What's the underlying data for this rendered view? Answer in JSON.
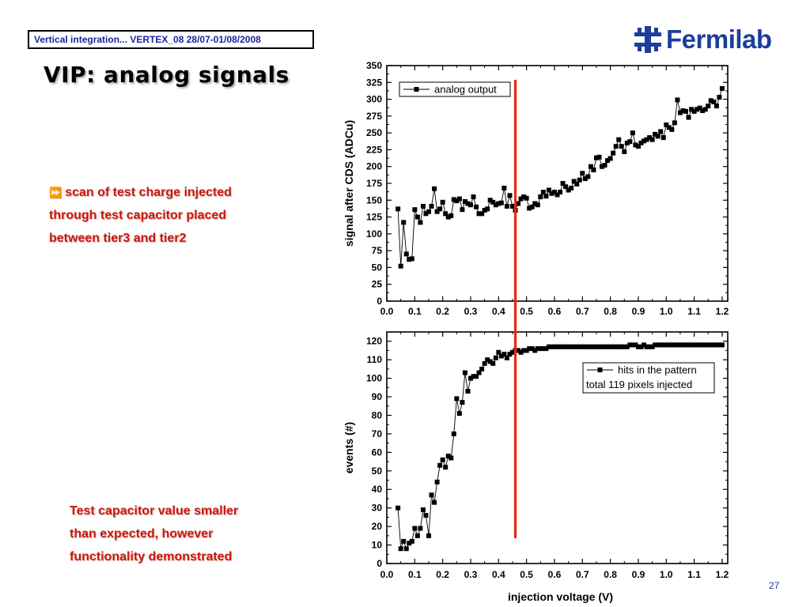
{
  "header": {
    "conference": "Vertical integration... VERTEX_08 28/07-01/08/2008",
    "logo_text": "Fermilab",
    "logo_icon": "fermilab-logo-icon"
  },
  "title": "VIP: analog signals",
  "bullet": {
    "icon": "double-arrow-icon",
    "lines": [
      "scan of test charge injected",
      "through test capacitor placed",
      "between tier3 and tier2"
    ]
  },
  "note": {
    "lines": [
      "Test capacitor value smaller",
      "than expected, however",
      "functionality demonstrated"
    ]
  },
  "page_number": "27",
  "colors": {
    "text_red": "#c8190e",
    "marker_line": "#e8291b",
    "logo_blue": "#1b3f9a",
    "header_text": "#1a1f9e"
  },
  "marker_line": {
    "x": 0.46
  },
  "chart_data": [
    {
      "type": "line",
      "xlabel": "",
      "ylabel": "signal after CDS (ADCu)",
      "xlim": [
        0.0,
        1.22
      ],
      "ylim": [
        0,
        350
      ],
      "xticks": [
        "0.0",
        "0.1",
        "0.2",
        "0.3",
        "0.4",
        "0.5",
        "0.6",
        "0.7",
        "0.8",
        "0.9",
        "1.0",
        "1.1",
        "1.2"
      ],
      "yticks": [
        "0",
        "25",
        "50",
        "75",
        "100",
        "125",
        "150",
        "175",
        "200",
        "225",
        "250",
        "275",
        "300",
        "325",
        "350"
      ],
      "legend_position": "top-left",
      "grid": false,
      "series": [
        {
          "name": "analog output",
          "x": [
            0.04,
            0.05,
            0.06,
            0.07,
            0.08,
            0.09,
            0.1,
            0.11,
            0.12,
            0.13,
            0.14,
            0.15,
            0.16,
            0.17,
            0.18,
            0.19,
            0.2,
            0.21,
            0.22,
            0.23,
            0.24,
            0.25,
            0.26,
            0.27,
            0.28,
            0.29,
            0.3,
            0.31,
            0.32,
            0.33,
            0.34,
            0.35,
            0.36,
            0.37,
            0.38,
            0.39,
            0.4,
            0.41,
            0.42,
            0.43,
            0.44,
            0.45,
            0.46,
            0.47,
            0.48,
            0.49,
            0.5,
            0.51,
            0.52,
            0.53,
            0.54,
            0.55,
            0.56,
            0.57,
            0.58,
            0.59,
            0.6,
            0.61,
            0.62,
            0.63,
            0.64,
            0.65,
            0.66,
            0.67,
            0.68,
            0.69,
            0.7,
            0.71,
            0.72,
            0.73,
            0.74,
            0.75,
            0.76,
            0.77,
            0.78,
            0.79,
            0.8,
            0.81,
            0.82,
            0.83,
            0.84,
            0.85,
            0.86,
            0.87,
            0.88,
            0.89,
            0.9,
            0.91,
            0.92,
            0.93,
            0.94,
            0.95,
            0.96,
            0.97,
            0.98,
            0.99,
            1.0,
            1.01,
            1.02,
            1.03,
            1.04,
            1.05,
            1.06,
            1.07,
            1.08,
            1.09,
            1.1,
            1.11,
            1.12,
            1.13,
            1.14,
            1.15,
            1.16,
            1.17,
            1.18,
            1.19,
            1.2
          ],
          "y": [
            137,
            52,
            117,
            70,
            62,
            63,
            136,
            125,
            117,
            141,
            130,
            133,
            141,
            167,
            133,
            137,
            147,
            130,
            125,
            127,
            151,
            149,
            152,
            136,
            148,
            145,
            143,
            155,
            140,
            130,
            130,
            135,
            137,
            150,
            147,
            143,
            145,
            146,
            168,
            141,
            157,
            141,
            135,
            145,
            152,
            155,
            153,
            138,
            140,
            145,
            143,
            155,
            162,
            156,
            165,
            160,
            162,
            158,
            162,
            175,
            170,
            165,
            168,
            178,
            174,
            180,
            190,
            182,
            185,
            200,
            195,
            213,
            214,
            200,
            202,
            209,
            212,
            220,
            230,
            240,
            230,
            222,
            235,
            237,
            250,
            232,
            230,
            235,
            238,
            240,
            243,
            240,
            248,
            245,
            252,
            243,
            262,
            258,
            255,
            265,
            299,
            280,
            283,
            282,
            273,
            285,
            282,
            285,
            287,
            283,
            285,
            290,
            298,
            296,
            290,
            303,
            316
          ]
        }
      ]
    },
    {
      "type": "line",
      "xlabel": "injection voltage (V)",
      "ylabel": "events (#)",
      "xlim": [
        0.0,
        1.22
      ],
      "ylim": [
        0,
        125
      ],
      "xticks": [
        "0.0",
        "0.1",
        "0.2",
        "0.3",
        "0.4",
        "0.5",
        "0.6",
        "0.7",
        "0.8",
        "0.9",
        "1.0",
        "1.1",
        "1.2"
      ],
      "yticks": [
        "0",
        "10",
        "20",
        "30",
        "40",
        "50",
        "60",
        "70",
        "80",
        "90",
        "100",
        "110",
        "120"
      ],
      "legend_position": "right",
      "grid": false,
      "legend_note": "total 119 pixels injected",
      "series": [
        {
          "name": "hits in the pattern",
          "x": [
            0.04,
            0.05,
            0.06,
            0.07,
            0.08,
            0.09,
            0.1,
            0.11,
            0.12,
            0.13,
            0.14,
            0.15,
            0.16,
            0.17,
            0.18,
            0.19,
            0.2,
            0.21,
            0.22,
            0.23,
            0.24,
            0.25,
            0.26,
            0.27,
            0.28,
            0.29,
            0.3,
            0.31,
            0.32,
            0.33,
            0.34,
            0.35,
            0.36,
            0.37,
            0.38,
            0.39,
            0.4,
            0.41,
            0.42,
            0.43,
            0.44,
            0.45,
            0.46,
            0.47,
            0.48,
            0.49,
            0.5,
            0.51,
            0.52,
            0.53,
            0.54,
            0.55,
            0.56,
            0.57,
            0.58,
            0.59,
            0.6,
            0.61,
            0.62,
            0.63,
            0.64,
            0.65,
            0.66,
            0.67,
            0.68,
            0.69,
            0.7,
            0.71,
            0.72,
            0.73,
            0.74,
            0.75,
            0.76,
            0.77,
            0.78,
            0.79,
            0.8,
            0.81,
            0.82,
            0.83,
            0.84,
            0.85,
            0.86,
            0.87,
            0.88,
            0.89,
            0.9,
            0.91,
            0.92,
            0.93,
            0.94,
            0.95,
            0.96,
            0.97,
            0.98,
            0.99,
            1.0,
            1.01,
            1.02,
            1.03,
            1.04,
            1.05,
            1.06,
            1.07,
            1.08,
            1.09,
            1.1,
            1.11,
            1.12,
            1.13,
            1.14,
            1.15,
            1.16,
            1.17,
            1.18,
            1.19,
            1.2
          ],
          "y": [
            30,
            8,
            12,
            8,
            11,
            12,
            19,
            15,
            19,
            29,
            26,
            15,
            37,
            33,
            44,
            53,
            56,
            52,
            58,
            57,
            70,
            89,
            81,
            87,
            103,
            93,
            100,
            101,
            101,
            103,
            105,
            108,
            110,
            109,
            108,
            111,
            114,
            112,
            113,
            111,
            113,
            114,
            115,
            115,
            114,
            115,
            115,
            116,
            116,
            115,
            116,
            116,
            116,
            116,
            117,
            117,
            117,
            117,
            117,
            117,
            117,
            117,
            117,
            117,
            117,
            117,
            117,
            117,
            117,
            117,
            117,
            117,
            117,
            117,
            117,
            117,
            117,
            117,
            117,
            117,
            117,
            117,
            117,
            118,
            118,
            118,
            117,
            117,
            118,
            117,
            117,
            117,
            118,
            118,
            118,
            118,
            118,
            118,
            118,
            118,
            118,
            118,
            118,
            118,
            118,
            118,
            118,
            118,
            118,
            118,
            118,
            118,
            118,
            118,
            118,
            118,
            118
          ]
        }
      ]
    }
  ]
}
